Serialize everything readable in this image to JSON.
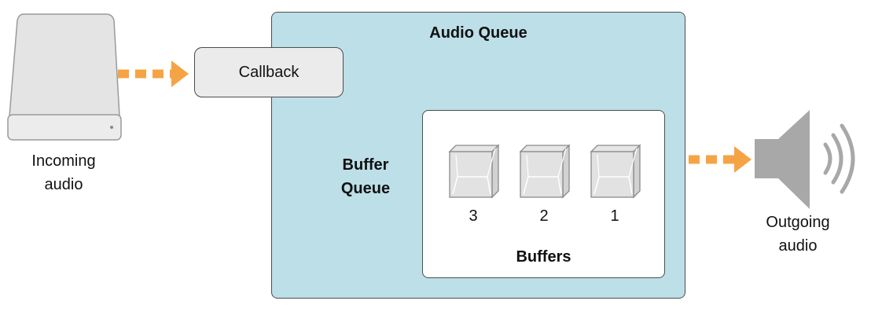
{
  "audio_queue": {
    "title": "Audio Queue"
  },
  "callback": {
    "label": "Callback"
  },
  "buffer_queue": {
    "label_line1": "Buffer",
    "label_line2": "Queue"
  },
  "buffers": {
    "title": "Buffers",
    "items": [
      {
        "number": "3"
      },
      {
        "number": "2"
      },
      {
        "number": "1"
      }
    ]
  },
  "incoming": {
    "caption_line1": "Incoming",
    "caption_line2": "audio",
    "icon": "hard-drive-icon"
  },
  "outgoing": {
    "caption_line1": "Outgoing",
    "caption_line2": "audio",
    "icon": "speaker-icon"
  },
  "colors": {
    "queue_fill": "#bcdfe8",
    "arrow": "#f5a445",
    "callback_fill": "#ebebeb",
    "stroke": "#4d4d4d"
  }
}
